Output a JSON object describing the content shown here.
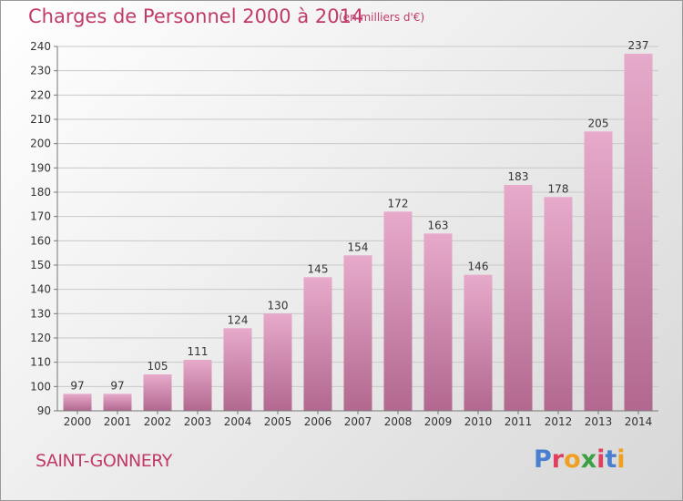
{
  "header": {
    "title": "Charges de Personnel 2000 à 2014",
    "subtitle": "(en milliers d'€)"
  },
  "footer": {
    "town": "SAINT-GONNERY",
    "logo_letters": [
      "P",
      "r",
      "o",
      "x",
      "i",
      "t",
      "i"
    ]
  },
  "colors": {
    "title": "#c03a6a",
    "bar_top": "#e7aacb",
    "bar_bottom": "#b2688f",
    "logo": [
      "#4a7fd0",
      "#e04060",
      "#f0a020",
      "#3aa040",
      "#e04060",
      "#4a7fd0",
      "#f0a020"
    ]
  },
  "chart_data": {
    "type": "bar",
    "categories": [
      "2000",
      "2001",
      "2002",
      "2003",
      "2004",
      "2005",
      "2006",
      "2007",
      "2008",
      "2009",
      "2010",
      "2011",
      "2012",
      "2013",
      "2014"
    ],
    "values": [
      97,
      97,
      105,
      111,
      124,
      130,
      145,
      154,
      172,
      163,
      146,
      183,
      178,
      205,
      237
    ],
    "data_labels": [
      "97",
      "97",
      "105",
      "111",
      "124",
      "130",
      "145",
      "154",
      "172",
      "163",
      "146",
      "183",
      "178",
      "205",
      "237"
    ],
    "ylim": [
      90,
      240
    ],
    "yticks": [
      90,
      100,
      110,
      120,
      130,
      140,
      150,
      160,
      170,
      180,
      190,
      200,
      210,
      220,
      230,
      240
    ],
    "grid": true,
    "xlabel": "",
    "ylabel": ""
  }
}
